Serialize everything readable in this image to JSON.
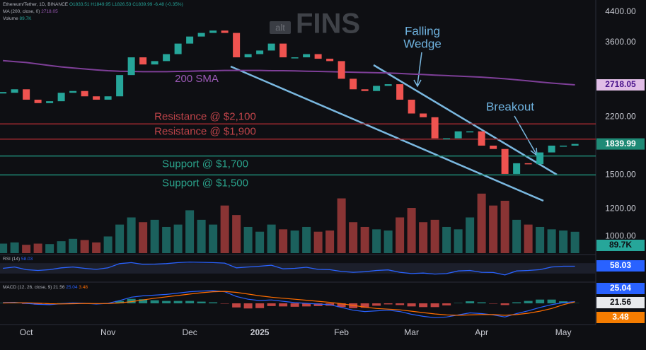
{
  "chart_data": {
    "type": "line",
    "header": {
      "symbol": "Ethereum/Tether, 1D, BINANCE",
      "ohlc": "O1833.51 H1849.95 L1826.53 C1839.99 -6.48 (-0.35%)",
      "ma": "MA (200, close, 0)",
      "volume": "Volume",
      "rsi": "RSI (14)",
      "macd": "MACD (12, 26, close, 9)"
    },
    "watermark": {
      "small": "alt",
      "big": "FINS"
    },
    "categories": [
      null,
      null,
      "Oct",
      null,
      null,
      null,
      null,
      null,
      null,
      "Nov",
      null,
      null,
      null,
      null,
      null,
      null,
      "Dec",
      null,
      null,
      null,
      null,
      null,
      "2025",
      null,
      null,
      null,
      null,
      null,
      null,
      "Feb",
      null,
      null,
      null,
      null,
      null,
      "Mar",
      null,
      null,
      null,
      null,
      null,
      "Apr",
      null,
      null,
      null,
      null,
      null,
      null,
      "May",
      null
    ],
    "log": true,
    "ylim": [
      895,
      4760
    ],
    "yticks": [
      {
        "value": 1000,
        "label": "1000.00"
      },
      {
        "value": 1200,
        "label": "1200.00"
      },
      {
        "value": 1500,
        "label": "1500.00"
      },
      {
        "value": 2200,
        "label": "2200.00"
      },
      {
        "value": 3600,
        "label": "3600.00"
      },
      {
        "value": 4400,
        "label": "4400.00"
      }
    ],
    "grid": false,
    "series": [
      {
        "color_up": "#26a69a",
        "color_down": "#ef5350",
        "values": [
          2580,
          2640,
          2465,
          2410,
          2440,
          2580,
          2610,
          2520,
          2465,
          2520,
          2900,
          3260,
          3110,
          3180,
          3330,
          3570,
          3740,
          3830,
          3890,
          3830,
          3260,
          3330,
          3410,
          3570,
          3260,
          3260,
          3330,
          3230,
          3180,
          2830,
          2640,
          2610,
          2700,
          2730,
          2465,
          2250,
          2195,
          1910,
          1910,
          2000,
          2000,
          1820,
          1780,
          1510,
          1620,
          1610,
          1740,
          1820,
          1820,
          1839.99
        ]
      },
      {
        "name": "200 SMA",
        "color": "#7e3f98",
        "values": [
          3190,
          3170,
          3150,
          3120,
          3090,
          3060,
          3040,
          3020,
          3000,
          2985,
          2975,
          2970,
          2965,
          2965,
          2965,
          2970,
          2975,
          2980,
          2985,
          2990,
          2990,
          2990,
          2990,
          2985,
          2985,
          2980,
          2975,
          2970,
          2965,
          2960,
          2955,
          2950,
          2945,
          2940,
          2930,
          2920,
          2910,
          2900,
          2890,
          2880,
          2870,
          2860,
          2845,
          2830,
          2810,
          2790,
          2770,
          2750,
          2735,
          2718.05
        ]
      }
    ],
    "levels": [
      {
        "label": "Resistance @ $2,100",
        "value": 2100,
        "color": "#9e2a2f",
        "text_color": "#c0444a"
      },
      {
        "label": "Resistance @ $1,900",
        "value": 1900,
        "color": "#9e2a2f",
        "text_color": "#c0444a"
      },
      {
        "label": "Support @ $1,700",
        "value": 1700,
        "color": "#1f8a76",
        "text_color": "#2aa18a"
      },
      {
        "label": "Support @ $1,500",
        "value": 1500,
        "color": "#1f8a76",
        "text_color": "#2aa18a"
      }
    ],
    "annotations": {
      "wedge": [
        "Falling",
        "Wedge"
      ],
      "breakout": "Breakout"
    },
    "volume": {
      "ylim": [
        0,
        300
      ],
      "values": [
        40,
        45,
        35,
        40,
        38,
        50,
        60,
        55,
        45,
        70,
        120,
        150,
        130,
        140,
        110,
        120,
        180,
        140,
        120,
        200,
        160,
        110,
        90,
        120,
        100,
        95,
        110,
        90,
        95,
        230,
        130,
        110,
        100,
        95,
        150,
        190,
        130,
        140,
        110,
        100,
        150,
        250,
        200,
        220,
        140,
        120,
        110,
        100,
        95,
        89.7
      ],
      "value_labels": [
        null,
        null,
        null,
        null,
        null,
        null,
        null,
        null,
        null,
        null,
        null,
        null,
        null,
        null,
        null,
        null,
        null,
        null,
        null,
        null,
        null,
        null,
        null,
        null,
        null,
        null,
        null,
        null,
        null,
        null,
        null,
        null,
        null,
        null,
        null,
        null,
        null,
        null,
        null,
        null,
        null,
        null,
        null,
        null,
        null,
        null,
        null,
        null,
        null,
        "89.7K"
      ]
    },
    "rsi": {
      "ylim": [
        0,
        100
      ],
      "color": "#2962ff",
      "values": [
        50,
        55,
        45,
        42,
        45,
        52,
        55,
        50,
        46,
        52,
        68,
        72,
        65,
        66,
        68,
        72,
        74,
        73,
        72,
        70,
        52,
        55,
        58,
        62,
        48,
        50,
        54,
        46,
        45,
        38,
        35,
        37,
        42,
        44,
        35,
        30,
        32,
        28,
        30,
        40,
        42,
        35,
        34,
        25,
        40,
        42,
        45,
        55,
        58,
        58.03
      ]
    },
    "macd": {
      "ylim": [
        -300,
        300
      ],
      "series": [
        {
          "color": "#2962ff",
          "values": [
            10,
            15,
            0,
            -15,
            -20,
            -5,
            5,
            0,
            -10,
            0,
            40,
            90,
            110,
            120,
            130,
            150,
            170,
            180,
            185,
            170,
            100,
            60,
            40,
            50,
            30,
            10,
            0,
            -10,
            -20,
            -60,
            -100,
            -120,
            -110,
            -100,
            -120,
            -160,
            -190,
            -210,
            -200,
            -170,
            -140,
            -150,
            -170,
            -200,
            -150,
            -110,
            -60,
            -20,
            10,
            25.04
          ]
        },
        {
          "color": "#ff6d00",
          "values": [
            5,
            8,
            8,
            3,
            -5,
            -8,
            -5,
            -2,
            -3,
            -3,
            5,
            25,
            50,
            75,
            95,
            115,
            135,
            155,
            170,
            175,
            160,
            135,
            110,
            90,
            75,
            60,
            45,
            30,
            15,
            -5,
            -30,
            -55,
            -75,
            -85,
            -95,
            -115,
            -135,
            -155,
            -170,
            -175,
            -170,
            -165,
            -165,
            -175,
            -165,
            -145,
            -115,
            -75,
            -20,
            21.56
          ]
        }
      ],
      "histogram": {
        "color_up": "#26a69a",
        "color_down": "#ef5350",
        "label_color": "#f57c00",
        "values": [
          5,
          7,
          -8,
          -18,
          -15,
          3,
          10,
          2,
          -7,
          3,
          35,
          65,
          60,
          45,
          35,
          35,
          35,
          25,
          15,
          -5,
          -60,
          -75,
          -70,
          -40,
          -45,
          -50,
          -45,
          -40,
          -35,
          -55,
          -70,
          -65,
          -35,
          -15,
          -25,
          -45,
          -55,
          -55,
          -30,
          5,
          30,
          15,
          -5,
          -25,
          15,
          35,
          55,
          55,
          30,
          3.48
        ]
      }
    }
  }
}
